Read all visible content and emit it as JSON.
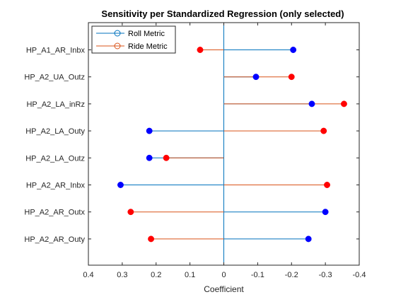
{
  "chart_data": {
    "type": "lollipop",
    "title": "Sensitivity per Standardized Regression (only selected)",
    "xlabel": "Coefficient",
    "ylabel": "",
    "x_axis_reversed": true,
    "xlim": [
      0.4,
      -0.4
    ],
    "xticks": [
      0.4,
      0.3,
      0.2,
      0.1,
      0,
      -0.1,
      -0.2,
      -0.3,
      -0.4
    ],
    "xtick_labels": [
      "0.4",
      "0.3",
      "0.2",
      "0.1",
      "0",
      "-0.1",
      "-0.2",
      "-0.3",
      "-0.4"
    ],
    "baseline": 0,
    "categories": [
      "HP_A1_AR_Inbx",
      "HP_A2_UA_Outz",
      "HP_A2_LA_inRz",
      "HP_A2_LA_Outy",
      "HP_A2_LA_Outz",
      "HP_A2_AR_Inbx",
      "HP_A2_AR_Outx",
      "HP_A2_AR_Outy"
    ],
    "series": [
      {
        "name": "Roll Metric",
        "line_color": "#0072BD",
        "marker_color": "#0000FF",
        "values": [
          -0.205,
          -0.095,
          -0.26,
          0.22,
          0.22,
          0.305,
          -0.3,
          -0.25
        ]
      },
      {
        "name": "Ride Metric",
        "line_color": "#D95319",
        "marker_color": "#FF0000",
        "values": [
          0.07,
          -0.2,
          -0.355,
          -0.295,
          0.17,
          -0.305,
          0.275,
          0.215
        ]
      }
    ],
    "legend_position": "top-left",
    "grid": false
  }
}
